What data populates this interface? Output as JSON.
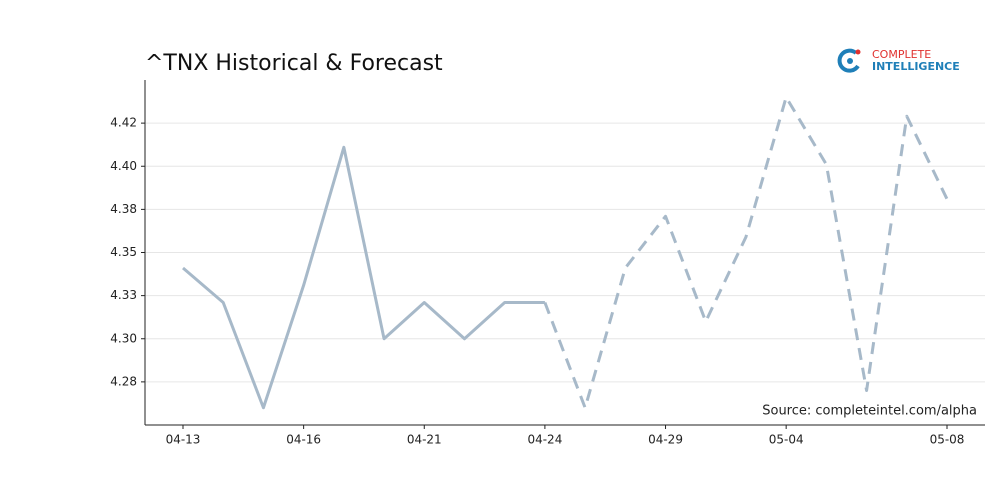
{
  "chart_data": {
    "type": "line",
    "title": "^TNX Historical & Forecast",
    "source": "Source: completeintel.com/alpha",
    "brand": [
      "COMPLETE",
      "INTELLIGENCE"
    ],
    "categories": [
      "04-13",
      null,
      null,
      "04-16",
      null,
      null,
      "04-21",
      null,
      null,
      "04-24",
      null,
      null,
      "04-29",
      null,
      null,
      "05-04",
      null,
      null,
      null,
      "05-08"
    ],
    "series": [
      {
        "color": "#a7b9c9",
        "style": "solid",
        "values": [
          4.341,
          4.321,
          4.26,
          4.331,
          4.411,
          4.3,
          4.321,
          4.3,
          4.321,
          4.321,
          null,
          null,
          null,
          null,
          null,
          null,
          null,
          null,
          null,
          null
        ]
      },
      {
        "color": "#a7b9c9",
        "style": "dashed",
        "values": [
          null,
          null,
          null,
          null,
          null,
          null,
          null,
          null,
          null,
          4.321,
          4.26,
          4.341,
          4.371,
          4.31,
          4.359,
          4.44,
          4.401,
          4.27,
          4.429,
          4.381
        ]
      }
    ],
    "ylim": [
      4.25,
      4.45
    ],
    "yticks": [
      {
        "value": 4.275,
        "label": "4.28"
      },
      {
        "value": 4.3,
        "label": "4.30"
      },
      {
        "value": 4.325,
        "label": "4.33"
      },
      {
        "value": 4.35,
        "label": "4.35"
      },
      {
        "value": 4.375,
        "label": "4.38"
      },
      {
        "value": 4.4,
        "label": "4.40"
      },
      {
        "value": 4.425,
        "label": "4.42"
      }
    ],
    "grid": true
  }
}
